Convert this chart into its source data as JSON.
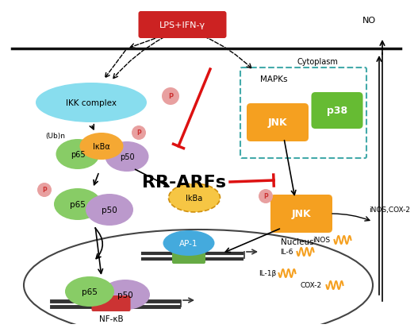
{
  "bg_color": "#ffffff",
  "lps_label": "LPS+IFN-γ",
  "lps_bg": "#cc2222",
  "no_label": "NO",
  "cytoplasm_label": "Cytoplasm",
  "nucleus_label": "Nucleus",
  "ikk_label": "IKK complex",
  "ikk_color": "#88ddee",
  "ikbA_label": "IκBα",
  "ikba_label2": "IkBa",
  "p65_color": "#88cc66",
  "p50_color": "#bb99cc",
  "ikba_color": "#f5a833",
  "jnk_color": "#f5a020",
  "p38_color": "#66bb33",
  "mapk_label": "MAPKs",
  "jnk_label": "JNK",
  "p38_label": "p38",
  "ap1_label": "AP-1",
  "ap1_color": "#44aadd",
  "ap1_base_color": "#66aa44",
  "nfkb_label": "NF-κB",
  "nfkb_base_color": "#cc3333",
  "rrarfs_label": "RR-ARFs",
  "ub_label": "(Ub)n",
  "p_label": "P",
  "p_color": "#e8a0a0",
  "p_text_color": "#cc3333",
  "il6_label": "IL-6",
  "il1b_label": "IL-1β",
  "cox2_label": "COX-2",
  "inos_label": "iNOS",
  "inos_cox2_label": "iNOS,COX-2",
  "wave_color": "#f5a020",
  "arrow_color": "#222222",
  "red_inhibit_color": "#dd1111",
  "dna_color": "#333333",
  "membrane_color": "#111111"
}
